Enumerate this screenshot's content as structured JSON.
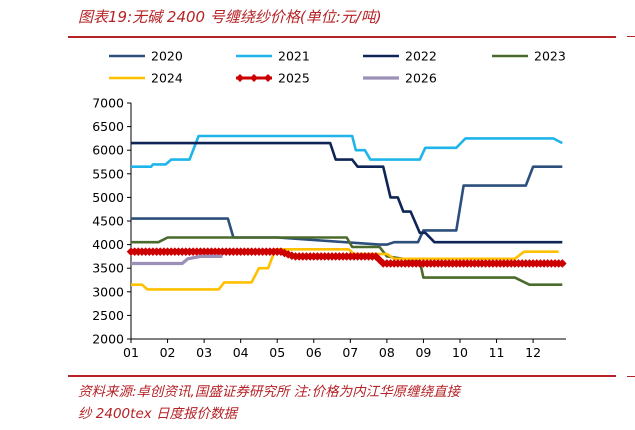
{
  "figure": {
    "title": "图表19:无碱 2400 号缠绕纱价格(单位:元/吨)",
    "source_line1": "资料来源:卓创资讯,国盛证券研究所   注:价格为内江华原缠绕直接",
    "source_line2": "纱 2400tex 日度报价数据"
  },
  "chart_data": {
    "type": "line",
    "title": "",
    "xlabel": "",
    "ylabel": "",
    "x_ticks": [
      "01",
      "02",
      "03",
      "04",
      "05",
      "06",
      "07",
      "08",
      "09",
      "10",
      "11",
      "12"
    ],
    "xlim": [
      1,
      12.9
    ],
    "ylim": [
      2000,
      7000
    ],
    "y_ticks": [
      2000,
      2500,
      3000,
      3500,
      4000,
      4500,
      5000,
      5500,
      6000,
      6500,
      7000
    ],
    "grid": false,
    "legend_position": "top",
    "series": [
      {
        "name": "2020",
        "color": "#2c4f7c",
        "width": 2.6,
        "points": [
          [
            1,
            4550
          ],
          [
            3.65,
            4550
          ],
          [
            3.8,
            4150
          ],
          [
            4.6,
            4150
          ],
          [
            5.0,
            4150
          ],
          [
            7.8,
            4000
          ],
          [
            8.0,
            4000
          ],
          [
            8.2,
            4050
          ],
          [
            8.85,
            4050
          ],
          [
            9.0,
            4300
          ],
          [
            9.9,
            4300
          ],
          [
            10.1,
            5250
          ],
          [
            11.6,
            5250
          ],
          [
            11.8,
            5250
          ],
          [
            12.0,
            5650
          ],
          [
            12.8,
            5650
          ]
        ]
      },
      {
        "name": "2021",
        "color": "#1fb5ea",
        "width": 2.6,
        "points": [
          [
            1,
            5650
          ],
          [
            1.55,
            5650
          ],
          [
            1.6,
            5700
          ],
          [
            1.95,
            5700
          ],
          [
            2.1,
            5800
          ],
          [
            2.6,
            5800
          ],
          [
            2.85,
            6300
          ],
          [
            6.3,
            6300
          ],
          [
            6.4,
            6300
          ],
          [
            7.05,
            6300
          ],
          [
            7.15,
            6000
          ],
          [
            7.4,
            6000
          ],
          [
            7.55,
            5800
          ],
          [
            8.9,
            5800
          ],
          [
            9.05,
            6050
          ],
          [
            9.9,
            6050
          ],
          [
            10.15,
            6250
          ],
          [
            12.55,
            6250
          ],
          [
            12.8,
            6150
          ]
        ]
      },
      {
        "name": "2022",
        "color": "#0f2557",
        "width": 2.6,
        "points": [
          [
            1,
            6150
          ],
          [
            6.45,
            6150
          ],
          [
            6.6,
            5800
          ],
          [
            7.05,
            5800
          ],
          [
            7.2,
            5650
          ],
          [
            7.9,
            5650
          ],
          [
            8.1,
            5000
          ],
          [
            8.3,
            5000
          ],
          [
            8.45,
            4700
          ],
          [
            8.65,
            4700
          ],
          [
            8.9,
            4250
          ],
          [
            9.05,
            4250
          ],
          [
            9.3,
            4050
          ],
          [
            12.8,
            4050
          ]
        ]
      },
      {
        "name": "2023",
        "color": "#4b6b2c",
        "width": 2.6,
        "points": [
          [
            1,
            4050
          ],
          [
            1.75,
            4050
          ],
          [
            2.0,
            4150
          ],
          [
            5.25,
            4150
          ],
          [
            5.5,
            4150
          ],
          [
            6.9,
            4150
          ],
          [
            7.05,
            3950
          ],
          [
            7.8,
            3950
          ],
          [
            8.0,
            3750
          ],
          [
            8.9,
            3650
          ],
          [
            9.0,
            3300
          ],
          [
            11.5,
            3300
          ],
          [
            11.9,
            3150
          ],
          [
            12.8,
            3150
          ]
        ]
      },
      {
        "name": "2024",
        "color": "#ffc000",
        "width": 2.6,
        "points": [
          [
            1,
            3150
          ],
          [
            1.3,
            3150
          ],
          [
            1.45,
            3050
          ],
          [
            3.4,
            3050
          ],
          [
            3.55,
            3200
          ],
          [
            4.3,
            3200
          ],
          [
            4.5,
            3500
          ],
          [
            4.75,
            3500
          ],
          [
            4.95,
            3900
          ],
          [
            6.95,
            3900
          ],
          [
            7.1,
            3800
          ],
          [
            8.0,
            3800
          ],
          [
            8.2,
            3700
          ],
          [
            9.1,
            3700
          ],
          [
            9.25,
            3700
          ],
          [
            11.5,
            3700
          ],
          [
            11.75,
            3850
          ],
          [
            12.7,
            3850
          ]
        ]
      },
      {
        "name": "2025",
        "color": "#cc0000",
        "width": 3,
        "marker": "diamond",
        "points": [
          [
            1,
            3850
          ],
          [
            5.1,
            3850
          ],
          [
            5.45,
            3750
          ],
          [
            7.7,
            3750
          ],
          [
            7.9,
            3600
          ],
          [
            12.8,
            3600
          ]
        ]
      },
      {
        "name": "2026",
        "color": "#9c8fb8",
        "width": 3.2,
        "points": [
          [
            1,
            3600
          ],
          [
            2.4,
            3600
          ],
          [
            2.55,
            3700
          ],
          [
            2.9,
            3750
          ],
          [
            3.5,
            3750
          ]
        ]
      }
    ]
  }
}
